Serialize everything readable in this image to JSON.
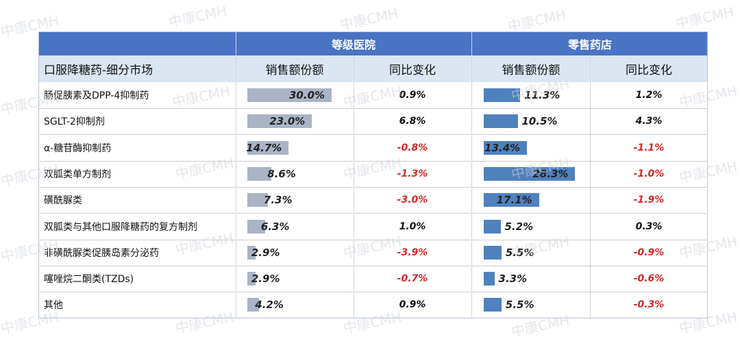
{
  "watermark": "中康CMH",
  "colors": {
    "header_bg": "#4a74c4",
    "subheader_bg": "#dce6f3",
    "hospital_bar": "#aab4c5",
    "retail_bar": "#4f81bd",
    "positive": "#111111",
    "negative": "#d62728"
  },
  "chart_data": {
    "type": "table",
    "groups": [
      {
        "name": "等级医院",
        "columns": [
          "销售额份额",
          "同比变化"
        ]
      },
      {
        "name": "零售药店",
        "columns": [
          "销售额份额",
          "同比变化"
        ]
      }
    ],
    "category_header": "口服降糖药-细分市场",
    "rows": [
      {
        "category": "肠促胰素及DPP-4抑制药",
        "hospital_share": 30.0,
        "hospital_share_label": "30.0%",
        "hospital_change": 0.9,
        "hospital_change_label": "0.9%",
        "retail_share": 11.3,
        "retail_share_label": "11.3%",
        "retail_change": 1.2,
        "retail_change_label": "1.2%"
      },
      {
        "category": "SGLT-2抑制剂",
        "hospital_share": 23.0,
        "hospital_share_label": "23.0%",
        "hospital_change": 6.8,
        "hospital_change_label": "6.8%",
        "retail_share": 10.5,
        "retail_share_label": "10.5%",
        "retail_change": 4.3,
        "retail_change_label": "4.3%"
      },
      {
        "category": "α-糖苷酶抑制药",
        "hospital_share": 14.7,
        "hospital_share_label": "14.7%",
        "hospital_change": -0.8,
        "hospital_change_label": "-0.8%",
        "retail_share": 13.4,
        "retail_share_label": "13.4%",
        "retail_change": -1.1,
        "retail_change_label": "-1.1%"
      },
      {
        "category": "双胍类单方制剂",
        "hospital_share": 8.6,
        "hospital_share_label": "8.6%",
        "hospital_change": -1.3,
        "hospital_change_label": "-1.3%",
        "retail_share": 28.3,
        "retail_share_label": "28.3%",
        "retail_change": -1.0,
        "retail_change_label": "-1.0%"
      },
      {
        "category": "磺酰脲类",
        "hospital_share": 7.3,
        "hospital_share_label": "7.3%",
        "hospital_change": -3.0,
        "hospital_change_label": "-3.0%",
        "retail_share": 17.1,
        "retail_share_label": "17.1%",
        "retail_change": -1.9,
        "retail_change_label": "-1.9%"
      },
      {
        "category": "双胍类与其他口服降糖药的复方制剂",
        "hospital_share": 6.3,
        "hospital_share_label": "6.3%",
        "hospital_change": 1.0,
        "hospital_change_label": "1.0%",
        "retail_share": 5.2,
        "retail_share_label": "5.2%",
        "retail_change": 0.3,
        "retail_change_label": "0.3%"
      },
      {
        "category": "非磺酰脲类促胰岛素分泌药",
        "hospital_share": 2.9,
        "hospital_share_label": "2.9%",
        "hospital_change": -3.9,
        "hospital_change_label": "-3.9%",
        "retail_share": 5.5,
        "retail_share_label": "5.5%",
        "retail_change": -0.9,
        "retail_change_label": "-0.9%"
      },
      {
        "category": "噻唑烷二酮类(TZDs)",
        "hospital_share": 2.9,
        "hospital_share_label": "2.9%",
        "hospital_change": -0.7,
        "hospital_change_label": "-0.7%",
        "retail_share": 3.3,
        "retail_share_label": "3.3%",
        "retail_change": -0.6,
        "retail_change_label": "-0.6%"
      },
      {
        "category": "其他",
        "hospital_share": 4.2,
        "hospital_share_label": "4.2%",
        "hospital_change": 0.9,
        "hospital_change_label": "0.9%",
        "retail_share": 5.5,
        "retail_share_label": "5.5%",
        "retail_change": -0.3,
        "retail_change_label": "-0.3%"
      }
    ]
  }
}
